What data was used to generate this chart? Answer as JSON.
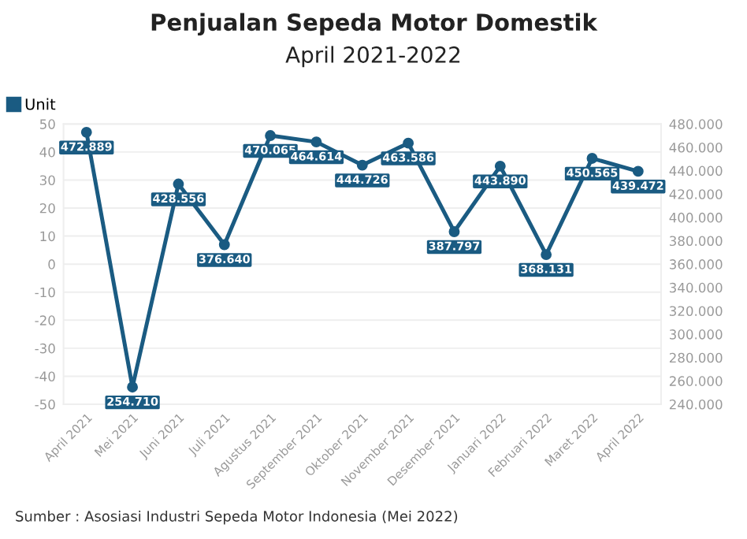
{
  "chart_data": {
    "type": "line",
    "title": "Penjualan Sepeda Motor Domestik",
    "subtitle": "April 2021-2022",
    "categories": [
      "April 2021",
      "Mei 2021",
      "Juni 2021",
      "Juli 2021",
      "Agustus 2021",
      "September 2021",
      "Oktober 2021",
      "November 2021",
      "Desember 2021",
      "Januari 2022",
      "Februari 2022",
      "Maret 2022",
      "April 2022"
    ],
    "series": [
      {
        "name": "Unit",
        "color": "#1a5b82",
        "axis": "y2",
        "values": [
          472889,
          254710,
          428556,
          376640,
          470065,
          464614,
          444726,
          463586,
          387797,
          443890,
          368131,
          450565,
          439472
        ],
        "value_labels": [
          "472.889",
          "254.710",
          "428.556",
          "376.640",
          "470.065",
          "464.614",
          "444.726",
          "463.586",
          "387.797",
          "443.890",
          "368.131",
          "450.565",
          "439.472"
        ]
      }
    ],
    "ylim": [
      -50,
      50
    ],
    "yticks": [
      -50,
      -40,
      -30,
      -20,
      -10,
      0,
      10,
      20,
      30,
      40,
      50
    ],
    "y2lim": [
      240000,
      480000
    ],
    "y2ticks": [
      {
        "value": 240000,
        "label": "240.000"
      },
      {
        "value": 260000,
        "label": "260.000"
      },
      {
        "value": 280000,
        "label": "280.000"
      },
      {
        "value": 300000,
        "label": "300.000"
      },
      {
        "value": 320000,
        "label": "320.000"
      },
      {
        "value": 340000,
        "label": "340.000"
      },
      {
        "value": 360000,
        "label": "360.000"
      },
      {
        "value": 380000,
        "label": "380.000"
      },
      {
        "value": 400000,
        "label": "400.000"
      },
      {
        "value": 420000,
        "label": "420.000"
      },
      {
        "value": 440000,
        "label": "440.000"
      },
      {
        "value": 460000,
        "label": "460.000"
      },
      {
        "value": 480000,
        "label": "480.000"
      }
    ],
    "grid": "y",
    "legend": "top left",
    "marker": "circle",
    "line_style": "solid",
    "annotations": [
      "Sumber : Asosiasi Industri Sepeda Motor Indonesia (Mei 2022)"
    ]
  }
}
